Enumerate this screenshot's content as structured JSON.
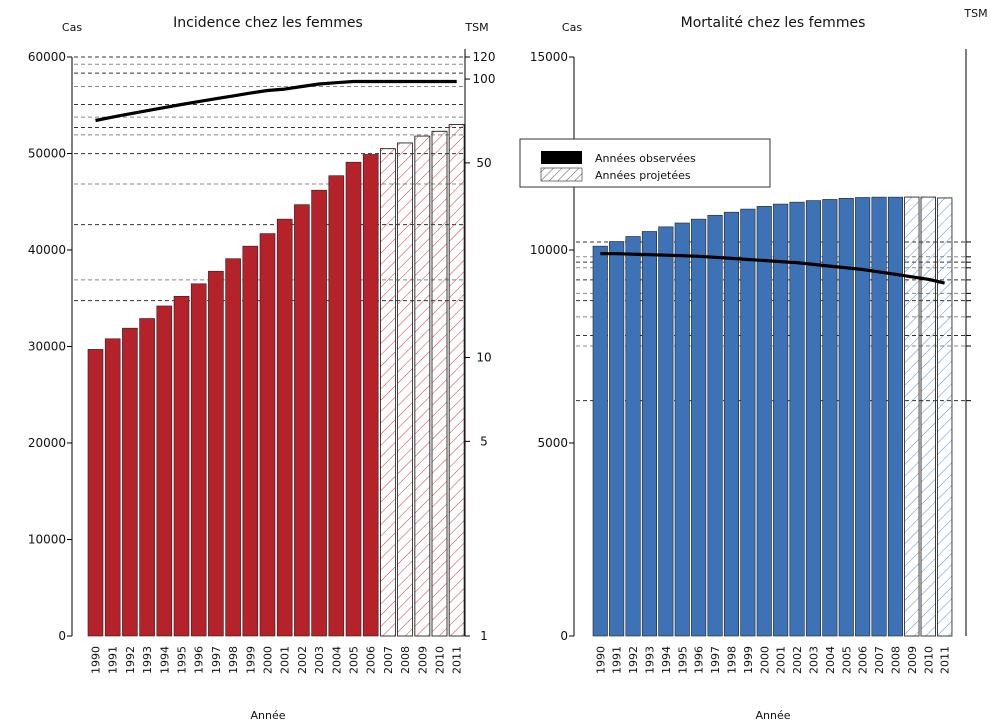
{
  "colors": {
    "left_bar": "#b5222a",
    "left_hatch": "#d03a3a",
    "right_bar": "#3e72b6",
    "right_hatch": "#5a8ed0",
    "line": "#000000"
  },
  "chart_data": [
    {
      "type": "bar",
      "title": "Incidence chez les femmes",
      "ylabel": "Cas",
      "ylabel2": "TSM",
      "xlabel": "Année",
      "categories": [
        "1990",
        "1991",
        "1992",
        "1993",
        "1994",
        "1995",
        "1996",
        "1997",
        "1998",
        "1999",
        "2000",
        "2001",
        "2002",
        "2003",
        "2004",
        "2005",
        "2006",
        "2007",
        "2008",
        "2009",
        "2010",
        "2011"
      ],
      "observed_count": 17,
      "series": [
        {
          "values": [
            29700,
            30800,
            31900,
            32900,
            34200,
            35200,
            36500,
            37800,
            39100,
            40400,
            41700,
            43200,
            44700,
            46200,
            47700,
            49100,
            49900,
            50500,
            51100,
            51800,
            52300,
            53000
          ]
        }
      ],
      "ylim": [
        0,
        60000
      ],
      "yticks": [
        "0",
        "10000",
        "20000",
        "30000",
        "40000",
        "50000",
        "60000"
      ],
      "y2_log": true,
      "y2ticks": [
        "1",
        "5",
        "10",
        "50",
        "100",
        "120"
      ],
      "tsm": [
        71,
        73,
        75,
        77,
        79,
        81,
        83,
        85,
        87,
        89,
        91,
        92,
        94,
        96,
        97,
        98,
        98,
        98,
        98,
        98,
        98,
        98
      ],
      "grid_y": [
        16,
        19,
        30,
        42,
        54,
        63,
        67,
        73,
        81,
        94,
        105,
        113,
        120
      ]
    },
    {
      "type": "bar",
      "title": "Mortalité chez les femmes",
      "ylabel": "Cas",
      "ylabel2": "TSM",
      "xlabel": "Année",
      "categories": [
        "1990",
        "1991",
        "1992",
        "1993",
        "1994",
        "1995",
        "1996",
        "1997",
        "1998",
        "1999",
        "2000",
        "2001",
        "2002",
        "2003",
        "2004",
        "2005",
        "2006",
        "2007",
        "2008",
        "2009",
        "2010",
        "2011"
      ],
      "observed_count": 19,
      "series": [
        {
          "values": [
            10100,
            10220,
            10350,
            10480,
            10600,
            10700,
            10800,
            10900,
            10980,
            11060,
            11130,
            11190,
            11240,
            11280,
            11310,
            11340,
            11360,
            11370,
            11370,
            11370,
            11370,
            11350
          ]
        }
      ],
      "ylim": [
        0,
        15000
      ],
      "yticks": [
        "0",
        "5000",
        "10000",
        "15000"
      ],
      "y2_log": true,
      "tsm": [
        23.6,
        23.6,
        23.5,
        23.4,
        23.3,
        23.2,
        23.1,
        22.9,
        22.7,
        22.5,
        22.3,
        22.1,
        21.9,
        21.6,
        21.3,
        21.0,
        20.7,
        20.3,
        19.9,
        19.5,
        19.1,
        18.5
      ],
      "grid_y": [
        7,
        11,
        12,
        14,
        16,
        17,
        19,
        21,
        22,
        23,
        26
      ]
    }
  ],
  "legend": {
    "observed": "Années observées",
    "projected": "Années projetées"
  }
}
